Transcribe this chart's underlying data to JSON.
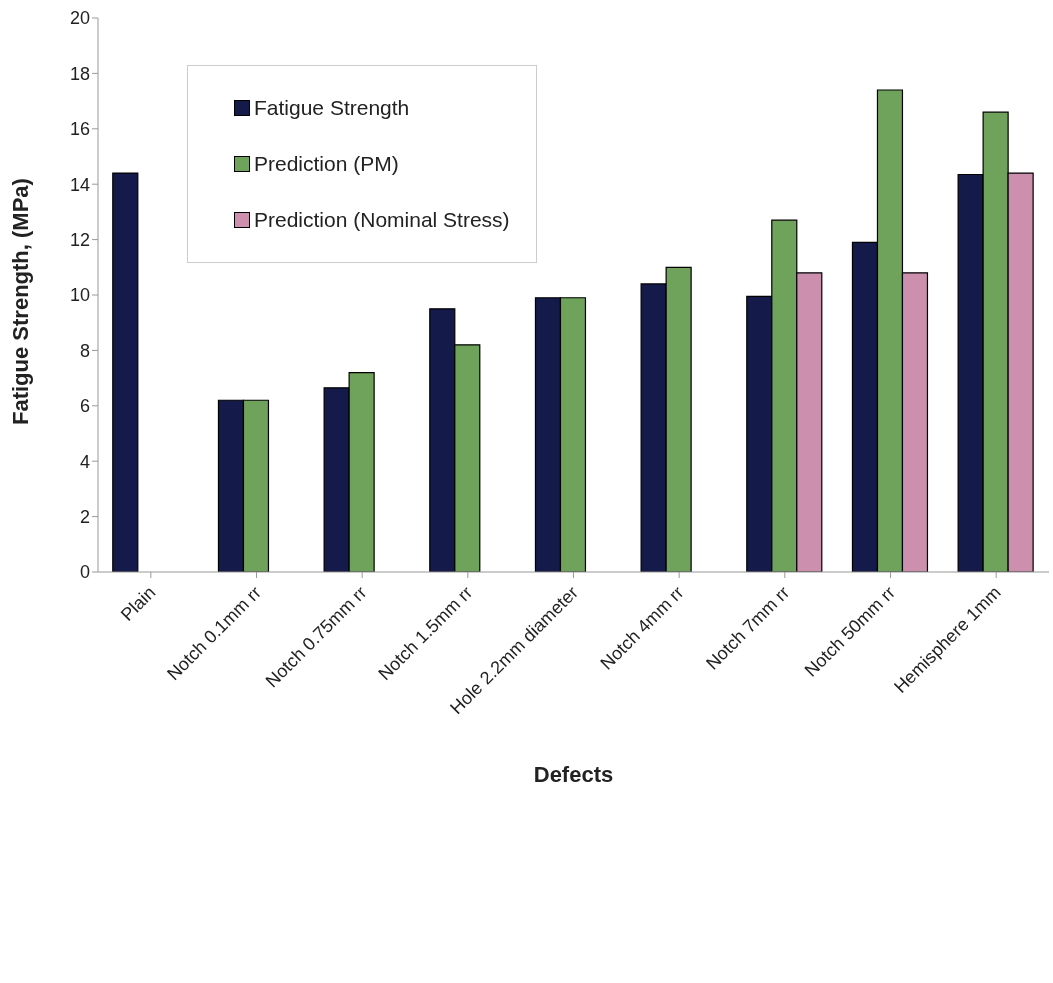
{
  "chart_data": {
    "type": "bar",
    "xlabel": "Defects",
    "ylabel": "Fatigue Strength, (MPa)",
    "categories": [
      "Plain",
      "Notch 0.1mm rr",
      "Notch 0.75mm rr",
      "Notch 1.5mm rr",
      "Hole 2.2mm diameter",
      "Notch 4mm rr",
      "Notch 7mm rr",
      "Notch 50mm rr",
      "Hemisphere 1mm"
    ],
    "series": [
      {
        "name": "Fatigue Strength",
        "color": "#141a4a",
        "values": [
          14.4,
          6.2,
          6.65,
          9.5,
          9.9,
          10.4,
          9.95,
          11.9,
          14.35
        ]
      },
      {
        "name": "Prediction (PM)",
        "color": "#6fa25a",
        "values": [
          null,
          6.2,
          7.2,
          8.2,
          9.9,
          11.0,
          12.7,
          17.4,
          16.6
        ]
      },
      {
        "name": "Prediction (Nominal Stress)",
        "color": "#cc8fae",
        "values": [
          null,
          null,
          null,
          null,
          null,
          null,
          10.8,
          10.8,
          14.4
        ]
      }
    ],
    "ylim": [
      0,
      20
    ],
    "yticks": [
      0,
      2,
      4,
      6,
      8,
      10,
      12,
      14,
      16,
      18,
      20
    ],
    "grid": false,
    "legend": "top left"
  }
}
